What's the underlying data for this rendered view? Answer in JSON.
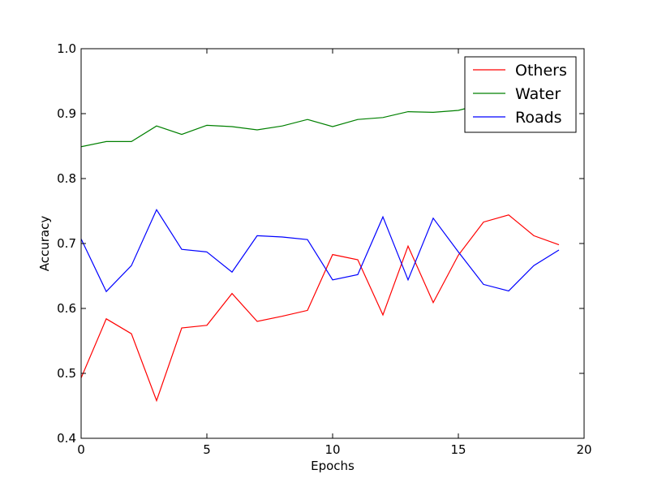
{
  "chart_data": {
    "type": "line",
    "title": "",
    "xlabel": "Epochs",
    "ylabel": "Accuracy",
    "xlim": [
      0,
      20
    ],
    "ylim": [
      0.4,
      1.0
    ],
    "xticks": [
      0,
      5,
      10,
      15,
      20
    ],
    "xtick_labels": [
      "0",
      "5",
      "10",
      "15",
      "20"
    ],
    "yticks": [
      0.4,
      0.5,
      0.6,
      0.7,
      0.8,
      0.9,
      1.0
    ],
    "ytick_labels": [
      "0.4",
      "0.5",
      "0.6",
      "0.7",
      "0.8",
      "0.9",
      "1.0"
    ],
    "grid": false,
    "legend_position": "top-right",
    "x": [
      0,
      1,
      2,
      3,
      4,
      5,
      6,
      7,
      8,
      9,
      10,
      11,
      12,
      13,
      14,
      15,
      16,
      17,
      18,
      19
    ],
    "series": [
      {
        "name": "Others",
        "color": "#ff0000",
        "values": [
          0.493,
          0.584,
          0.561,
          0.458,
          0.57,
          0.574,
          0.623,
          0.58,
          0.588,
          0.597,
          0.683,
          0.675,
          0.59,
          0.696,
          0.609,
          0.682,
          0.733,
          0.744,
          0.712,
          0.698
        ]
      },
      {
        "name": "Water",
        "color": "#008000",
        "values": [
          0.849,
          0.857,
          0.857,
          0.881,
          0.868,
          0.882,
          0.88,
          0.875,
          0.881,
          0.891,
          0.88,
          0.891,
          0.894,
          0.903,
          0.902,
          0.905,
          0.915,
          0.925,
          0.93,
          0.935
        ]
      },
      {
        "name": "Roads",
        "color": "#0000ff",
        "values": [
          0.707,
          0.626,
          0.666,
          0.752,
          0.691,
          0.687,
          0.656,
          0.712,
          0.71,
          0.706,
          0.644,
          0.652,
          0.741,
          0.644,
          0.739,
          0.687,
          0.637,
          0.627,
          0.666,
          0.69
        ]
      }
    ]
  }
}
